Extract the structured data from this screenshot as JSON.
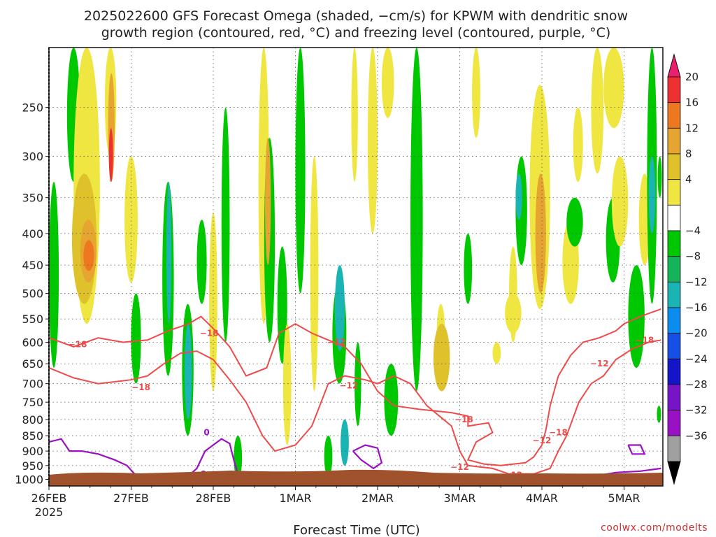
{
  "chart_data": {
    "type": "heatmap",
    "title_lines": [
      "2025022600 GFS Forecast Omega (shaded, −cm/s) for KPWM with dendritic snow",
      "growth region (contoured, red, °C) and freezing level (contoured, purple, °C)"
    ],
    "xlabel": "Forecast Time (UTC)",
    "ylabel": "",
    "credit": "coolwx.com/modelts",
    "x_ticks": [
      "26FEB",
      "27FEB",
      "28FEB",
      "1MAR",
      "2MAR",
      "3MAR",
      "4MAR",
      "5MAR"
    ],
    "x_year_label": "2025",
    "x_range_days": [
      0,
      7.45
    ],
    "y_ticks": [
      250,
      300,
      350,
      400,
      450,
      500,
      550,
      600,
      650,
      700,
      750,
      800,
      850,
      900,
      950,
      1000
    ],
    "y_range_hpa": [
      200,
      1025
    ],
    "y_scale": "log-pressure, inverted",
    "grid": true,
    "colorbar": {
      "labels": [
        "20",
        "16",
        "12",
        "8",
        "4",
        "−4",
        "−8",
        "−12",
        "−16",
        "−20",
        "−24",
        "−28",
        "−32",
        "−36"
      ],
      "colors": [
        "#e8206e",
        "#ef3030",
        "#ee7820",
        "#e6a531",
        "#dfc22b",
        "#f0e641",
        "#ffffff",
        "#00c800",
        "#14b45a",
        "#1ab4b4",
        "#0a8cf0",
        "#1450e6",
        "#1414c8",
        "#7814c8",
        "#9a10c4",
        "#a0a0a0",
        "#000000"
      ]
    },
    "contours": {
      "red_labels": [
        "−18",
        "−18",
        "−12",
        "−18",
        "−12",
        "−18",
        "−12",
        "−18",
        "−12",
        "−18",
        "−12",
        "−12"
      ],
      "purple_labels": [
        "0"
      ]
    }
  }
}
